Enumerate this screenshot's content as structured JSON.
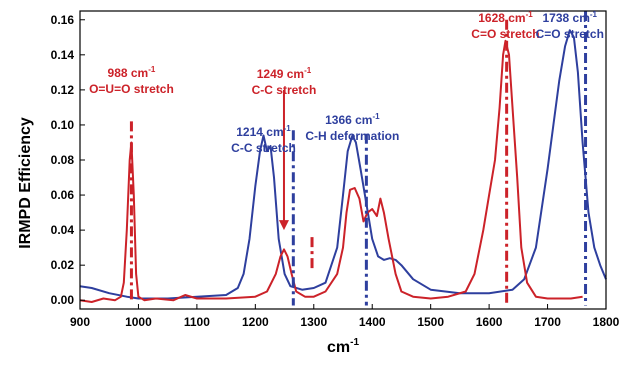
{
  "chart_data": {
    "type": "line",
    "xlabel": "cm",
    "xlabel_superscript": "-1",
    "ylabel": "IRMPD Efficiency",
    "xlim": [
      900,
      1800
    ],
    "ylim": [
      -0.005,
      0.165
    ],
    "xticks": [
      900,
      1000,
      1100,
      1200,
      1300,
      1400,
      1500,
      1600,
      1700,
      1800
    ],
    "yticks": [
      0.0,
      0.02,
      0.04,
      0.06,
      0.08,
      0.1,
      0.12,
      0.14,
      0.16
    ],
    "ytick_labels": [
      "0.00",
      "0.02",
      "0.04",
      "0.06",
      "0.08",
      "0.10",
      "0.12",
      "0.14",
      "0.16"
    ],
    "grid": false,
    "colors": {
      "red": "#cc2229",
      "blue": "#2e3f9e"
    },
    "series": [
      {
        "color": "#2e3f9e",
        "x": [
          900,
          920,
          950,
          980,
          1000,
          1050,
          1100,
          1150,
          1170,
          1180,
          1190,
          1200,
          1208,
          1214,
          1220,
          1226,
          1232,
          1240,
          1250,
          1260,
          1280,
          1300,
          1320,
          1340,
          1350,
          1358,
          1366,
          1372,
          1380,
          1390,
          1400,
          1410,
          1420,
          1430,
          1440,
          1450,
          1470,
          1500,
          1550,
          1600,
          1640,
          1660,
          1680,
          1700,
          1710,
          1720,
          1730,
          1738,
          1745,
          1752,
          1760,
          1770,
          1780,
          1790,
          1800
        ],
        "y": [
          0.008,
          0.007,
          0.004,
          0.002,
          0.001,
          0.001,
          0.002,
          0.003,
          0.007,
          0.015,
          0.035,
          0.065,
          0.085,
          0.094,
          0.085,
          0.088,
          0.07,
          0.035,
          0.015,
          0.008,
          0.006,
          0.007,
          0.01,
          0.03,
          0.06,
          0.085,
          0.094,
          0.09,
          0.075,
          0.055,
          0.035,
          0.025,
          0.023,
          0.024,
          0.023,
          0.02,
          0.012,
          0.006,
          0.004,
          0.004,
          0.006,
          0.012,
          0.03,
          0.075,
          0.1,
          0.125,
          0.145,
          0.154,
          0.15,
          0.13,
          0.09,
          0.05,
          0.03,
          0.02,
          0.012
        ]
      },
      {
        "color": "#cc2229",
        "x": [
          900,
          920,
          940,
          960,
          970,
          975,
          980,
          985,
          988,
          992,
          996,
          1000,
          1010,
          1030,
          1060,
          1080,
          1100,
          1150,
          1200,
          1220,
          1235,
          1243,
          1249,
          1255,
          1262,
          1270,
          1285,
          1300,
          1320,
          1340,
          1350,
          1356,
          1362,
          1370,
          1378,
          1385,
          1392,
          1400,
          1408,
          1414,
          1420,
          1428,
          1440,
          1450,
          1470,
          1500,
          1530,
          1560,
          1575,
          1590,
          1600,
          1610,
          1618,
          1624,
          1628,
          1634,
          1640,
          1648,
          1655,
          1665,
          1680,
          1700,
          1740,
          1760
        ],
        "y": [
          0.0,
          -0.001,
          0.001,
          0.0,
          0.002,
          0.01,
          0.04,
          0.08,
          0.09,
          0.06,
          0.015,
          0.002,
          0.0,
          0.001,
          0.0,
          0.003,
          0.001,
          0.001,
          0.002,
          0.005,
          0.015,
          0.025,
          0.029,
          0.025,
          0.015,
          0.005,
          0.002,
          0.002,
          0.005,
          0.015,
          0.03,
          0.05,
          0.063,
          0.064,
          0.058,
          0.045,
          0.05,
          0.052,
          0.048,
          0.058,
          0.05,
          0.035,
          0.015,
          0.005,
          0.002,
          0.001,
          0.002,
          0.005,
          0.015,
          0.04,
          0.06,
          0.08,
          0.11,
          0.14,
          0.148,
          0.14,
          0.11,
          0.07,
          0.03,
          0.01,
          0.002,
          0.001,
          0.001,
          0.002
        ]
      }
    ],
    "markers": [
      {
        "x": 988,
        "color": "#cc2229",
        "y_top": 0.102,
        "y_bottom": 0.0,
        "style": "dashdot"
      },
      {
        "x": 1265,
        "color": "#2e3f9e",
        "y_top": 0.097,
        "y_bottom": -0.003,
        "style": "dashdot"
      },
      {
        "x": 1249,
        "color": "#cc2229",
        "y_top": 0.12,
        "y_bottom": 0.04,
        "style": "arrow"
      },
      {
        "x": 1297,
        "color": "#cc2229",
        "y_top": 0.036,
        "y_bottom": 0.018,
        "style": "dashdot"
      },
      {
        "x": 1390,
        "color": "#2e3f9e",
        "y_top": 0.095,
        "y_bottom": -0.003,
        "style": "dashdot"
      },
      {
        "x": 1630,
        "color": "#cc2229",
        "y_top": 0.16,
        "y_bottom": -0.003,
        "style": "dashdot"
      },
      {
        "x": 1765,
        "color": "#2e3f9e",
        "y_top": 0.165,
        "y_bottom": -0.003,
        "style": "dashdot"
      }
    ],
    "annotations": [
      {
        "value": "988 cm",
        "sup": "-1",
        "line2": "O=U=O stretch",
        "color": "#cc2229",
        "anchor_x": 988
      },
      {
        "value": "1214 cm",
        "sup": "-1",
        "line2": "C-C stretch",
        "color": "#2e3f9e",
        "anchor_x": 1214
      },
      {
        "value": "1249 cm",
        "sup": "-1",
        "line2": "C-C stretch",
        "color": "#cc2229",
        "anchor_x": 1249
      },
      {
        "value": "1366 cm",
        "sup": "-1",
        "line2": "C-H deformation",
        "color": "#2e3f9e",
        "anchor_x": 1366
      },
      {
        "value": "1628 cm",
        "sup": "-1",
        "line2": "C=O stretch",
        "color": "#cc2229",
        "anchor_x": 1628
      },
      {
        "value": "1738 cm",
        "sup": "-1",
        "line2": "C=O stretch",
        "color": "#2e3f9e",
        "anchor_x": 1738
      }
    ]
  }
}
